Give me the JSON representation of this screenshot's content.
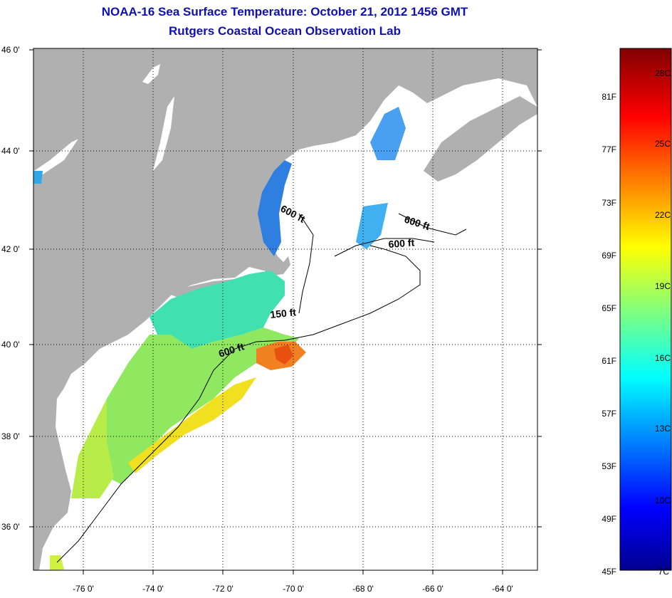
{
  "title": {
    "line1": "NOAA-16 Sea Surface Temperature:  October 21, 2012 1456 GMT",
    "line2": "Rutgers Coastal Ocean Observation Lab"
  },
  "map": {
    "lat_labels": [
      "46 0'",
      "44 0'",
      "42 0'",
      "40 0'",
      "38 0'",
      "36 0'"
    ],
    "lon_labels": [
      "-76 0'",
      "-74 0'",
      "-72 0'",
      "-70 0'",
      "-68 0'",
      "-66 0'",
      "-64 0'"
    ],
    "depth_labels": [
      "600 ft",
      "600 ft",
      "600 ft",
      "150 ft",
      "600 ft"
    ],
    "colors": {
      "land": "#b0b0b0",
      "ocean": "#ffffff"
    }
  },
  "colorbar": {
    "fahrenheit": [
      "81F",
      "77F",
      "73F",
      "69F",
      "65F",
      "61F",
      "57F",
      "53F",
      "49F",
      "45F"
    ],
    "celsius": [
      "28C",
      "25C",
      "22C",
      "19C",
      "16C",
      "13C",
      "10C",
      "7C"
    ]
  }
}
